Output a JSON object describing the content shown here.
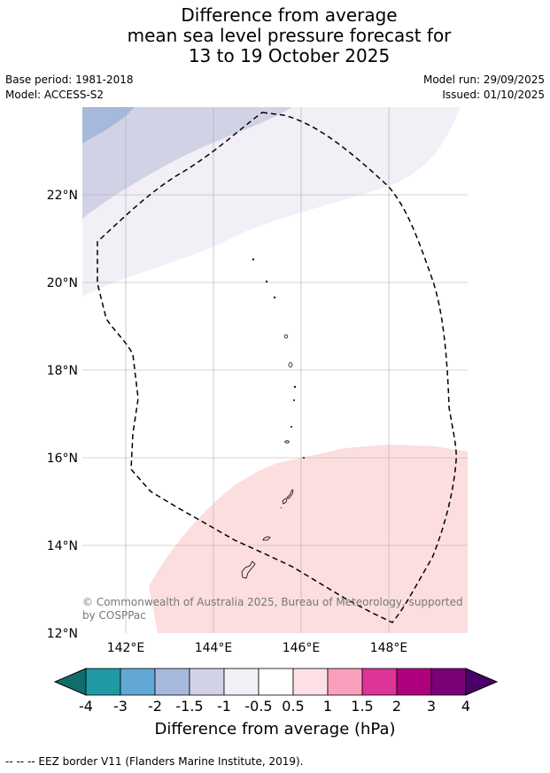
{
  "title": {
    "line1": "Difference from average",
    "line2": "mean sea level pressure forecast for",
    "line3": "13 to 19 October 2025"
  },
  "meta": {
    "base_period": "Base period: 1981-2018",
    "model": "Model: ACCESS-S2",
    "model_run": "Model run: 29/09/2025",
    "issued": "Issued: 01/10/2025"
  },
  "map": {
    "lat_ticks": [
      "22°N",
      "20°N",
      "18°N",
      "16°N",
      "14°N",
      "12°N"
    ],
    "lon_ticks": [
      "142°E",
      "144°E",
      "146°E",
      "148°E"
    ],
    "copyright_line1": "© Commonwealth of Australia 2025, Bureau of Meteorology, supported",
    "copyright_line2": "by COSPPac",
    "fill_colors": {
      "neg_1_5_to_neg_2": "#a6b9dc",
      "neg_1_to_neg_1_5": "#d2d2e7",
      "neg_0_5_to_neg_1": "#f2eff6",
      "pos_0_5_to_1": "#fcdede"
    }
  },
  "colorbar": {
    "title": "Difference from average (hPa)",
    "labels": [
      "-4",
      "-3",
      "-2",
      "-1.5",
      "-1",
      "-0.5",
      "0.5",
      "1",
      "1.5",
      "2",
      "3",
      "4"
    ],
    "colors": [
      "#0f6e6a",
      "#1f9aa4",
      "#62a8d4",
      "#a6b9dc",
      "#d2d2e7",
      "#f2eff6",
      "#ffffff",
      "#fde1e6",
      "#f9a1bc",
      "#dd3497",
      "#ae017e",
      "#7a0177",
      "#49006a"
    ]
  },
  "footer": "--  --  -- EEZ border V11 (Flanders Marine Institute, 2019)."
}
